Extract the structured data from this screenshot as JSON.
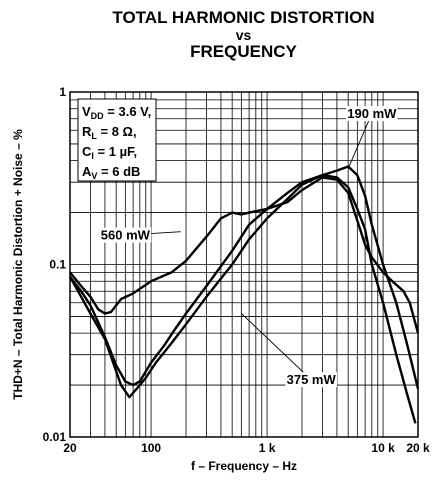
{
  "chart_data": {
    "type": "line",
    "title_lines": [
      "TOTAL HARMONIC DISTORTION",
      "vs",
      "FREQUENCY"
    ],
    "xlabel": "f – Frequency – Hz",
    "ylabel": "THD+N – Total Harmonic Distortion + Noise – %",
    "x_scale": "log",
    "y_scale": "log",
    "xlim": [
      20,
      20000
    ],
    "ylim": [
      0.01,
      1
    ],
    "grid": true,
    "x_ticks": [
      {
        "value": 20,
        "label": "20"
      },
      {
        "value": 100,
        "label": "100"
      },
      {
        "value": 1000,
        "label": "1 k"
      },
      {
        "value": 10000,
        "label": "10 k"
      },
      {
        "value": 20000,
        "label": "20 k"
      }
    ],
    "y_ticks": [
      {
        "value": 1,
        "label": "1"
      },
      {
        "value": 0.1,
        "label": "0.1"
      },
      {
        "value": 0.01,
        "label": "0.01"
      }
    ],
    "conditions": [
      {
        "name": "V",
        "sub": "DD",
        "rest": " = 3.6 V,"
      },
      {
        "name": "R",
        "sub": "L",
        "rest": " = 8 Ω,"
      },
      {
        "name": "C",
        "sub": "I",
        "rest": " = 1 µF,"
      },
      {
        "name": "A",
        "sub": "V",
        "rest": " = 6 dB"
      }
    ],
    "series": [
      {
        "name": "190 mW",
        "label_at": [
          8000,
          0.75
        ],
        "leader_to": [
          5000,
          0.36
        ],
        "points": [
          [
            20,
            0.085
          ],
          [
            25,
            0.07
          ],
          [
            30,
            0.058
          ],
          [
            40,
            0.038
          ],
          [
            50,
            0.026
          ],
          [
            60,
            0.021
          ],
          [
            70,
            0.02
          ],
          [
            80,
            0.021
          ],
          [
            100,
            0.027
          ],
          [
            130,
            0.034
          ],
          [
            160,
            0.042
          ],
          [
            200,
            0.052
          ],
          [
            300,
            0.075
          ],
          [
            500,
            0.12
          ],
          [
            700,
            0.17
          ],
          [
            1000,
            0.21
          ],
          [
            1500,
            0.26
          ],
          [
            2000,
            0.3
          ],
          [
            3000,
            0.33
          ],
          [
            4000,
            0.35
          ],
          [
            5000,
            0.37
          ],
          [
            6000,
            0.33
          ],
          [
            7000,
            0.25
          ],
          [
            8000,
            0.17
          ],
          [
            10000,
            0.1
          ],
          [
            13000,
            0.06
          ],
          [
            16000,
            0.035
          ],
          [
            20000,
            0.019
          ]
        ]
      },
      {
        "name": "375 mW",
        "label_at": [
          2400,
          0.0215
        ],
        "leader_to": [
          600,
          0.052
        ],
        "points": [
          [
            20,
            0.085
          ],
          [
            25,
            0.065
          ],
          [
            30,
            0.052
          ],
          [
            40,
            0.037
          ],
          [
            50,
            0.024
          ],
          [
            55,
            0.02
          ],
          [
            65,
            0.017
          ],
          [
            75,
            0.019
          ],
          [
            90,
            0.022
          ],
          [
            110,
            0.027
          ],
          [
            150,
            0.035
          ],
          [
            200,
            0.045
          ],
          [
            300,
            0.065
          ],
          [
            500,
            0.1
          ],
          [
            700,
            0.14
          ],
          [
            1000,
            0.185
          ],
          [
            1500,
            0.24
          ],
          [
            2000,
            0.29
          ],
          [
            3000,
            0.33
          ],
          [
            4000,
            0.32
          ],
          [
            5000,
            0.28
          ],
          [
            6000,
            0.21
          ],
          [
            7000,
            0.16
          ],
          [
            8000,
            0.1
          ],
          [
            10000,
            0.06
          ],
          [
            13000,
            0.03
          ],
          [
            16000,
            0.018
          ],
          [
            19000,
            0.012
          ]
        ]
      },
      {
        "name": "560 mW",
        "label_at": [
          60,
          0.148
        ],
        "leader_to": [
          180,
          0.155
        ],
        "points": [
          [
            20,
            0.09
          ],
          [
            25,
            0.075
          ],
          [
            30,
            0.065
          ],
          [
            35,
            0.055
          ],
          [
            40,
            0.052
          ],
          [
            45,
            0.053
          ],
          [
            55,
            0.063
          ],
          [
            70,
            0.068
          ],
          [
            100,
            0.08
          ],
          [
            150,
            0.09
          ],
          [
            200,
            0.105
          ],
          [
            300,
            0.145
          ],
          [
            400,
            0.185
          ],
          [
            500,
            0.2
          ],
          [
            600,
            0.195
          ],
          [
            700,
            0.2
          ],
          [
            1000,
            0.21
          ],
          [
            1500,
            0.23
          ],
          [
            2000,
            0.27
          ],
          [
            3000,
            0.32
          ],
          [
            4000,
            0.31
          ],
          [
            5000,
            0.26
          ],
          [
            6000,
            0.18
          ],
          [
            7000,
            0.13
          ],
          [
            8000,
            0.11
          ],
          [
            10000,
            0.09
          ],
          [
            12000,
            0.08
          ],
          [
            15000,
            0.07
          ],
          [
            17000,
            0.06
          ],
          [
            20000,
            0.04
          ]
        ]
      }
    ]
  }
}
